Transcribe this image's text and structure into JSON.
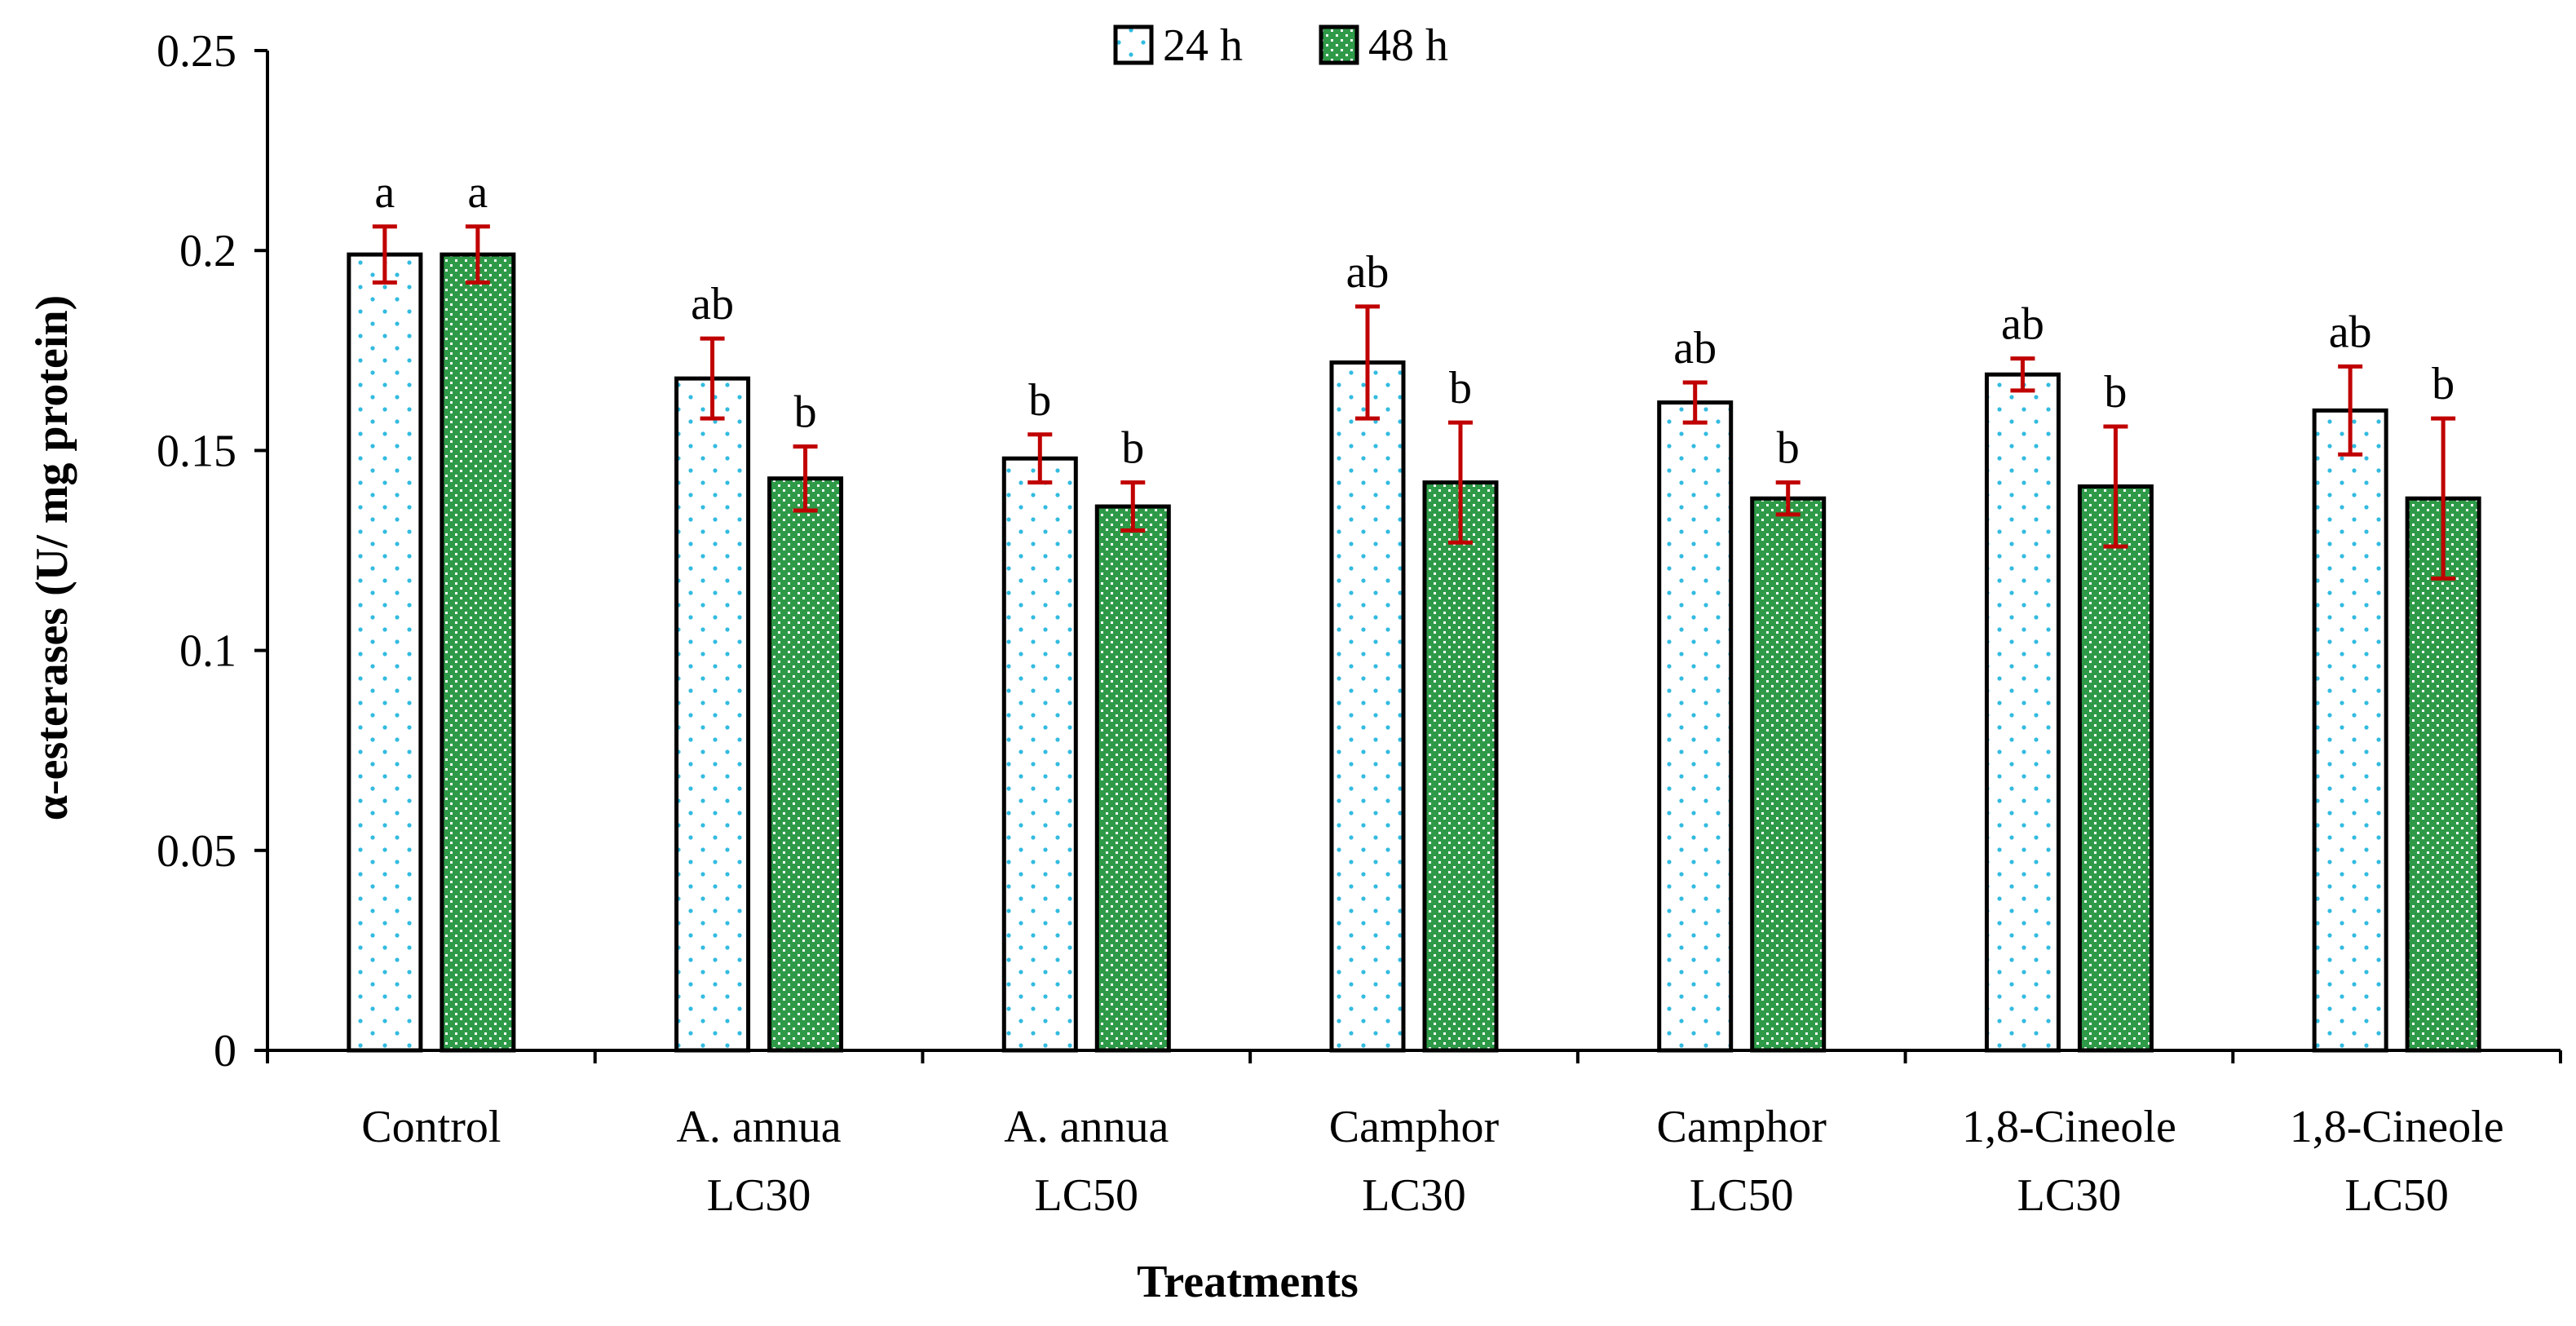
{
  "chart_data": {
    "type": "bar",
    "title": "",
    "xlabel": "Treatments",
    "ylabel": "α-esterases (U/ mg protein)",
    "ylim": [
      0,
      0.25
    ],
    "yticks": [
      0,
      0.05,
      0.1,
      0.15,
      0.2,
      0.25
    ],
    "ytick_labels": [
      "0",
      "0.05",
      "0.1",
      "0.15",
      "0.2",
      "0.25"
    ],
    "legend_position": "top-center",
    "grid": false,
    "categories": [
      [
        "Control"
      ],
      [
        "A. annua",
        "LC30"
      ],
      [
        "A. annua",
        "LC50"
      ],
      [
        "Camphor",
        "LC30"
      ],
      [
        "Camphor",
        "LC50"
      ],
      [
        "1,8-Cineole",
        "LC30"
      ],
      [
        "1,8-Cineole",
        "LC50"
      ]
    ],
    "series": [
      {
        "name": "24 h",
        "values": [
          0.199,
          0.168,
          0.148,
          0.172,
          0.162,
          0.169,
          0.16
        ],
        "errors": [
          0.007,
          0.01,
          0.006,
          0.014,
          0.005,
          0.004,
          0.011
        ],
        "labels": [
          "a",
          "ab",
          "b",
          "ab",
          "ab",
          "ab",
          "ab"
        ],
        "fill": "#ffffff",
        "pattern_color": "#33bbe0"
      },
      {
        "name": "48 h",
        "values": [
          0.199,
          0.143,
          0.136,
          0.142,
          0.138,
          0.141,
          0.138
        ],
        "errors": [
          0.007,
          0.008,
          0.006,
          0.015,
          0.004,
          0.015,
          0.02
        ],
        "labels": [
          "a",
          "b",
          "b",
          "b",
          "b",
          "b",
          "b"
        ],
        "fill": "#2e9a48",
        "pattern_color": "#ffffff"
      }
    ],
    "errorbar_color": "#c00000"
  }
}
